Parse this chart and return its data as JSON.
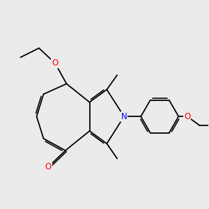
{
  "background_color": "#ebebeb",
  "bond_color": "#000000",
  "atom_colors": {
    "N": "#0000ff",
    "O": "#ff0000",
    "C": "#000000"
  },
  "figsize": [
    3.0,
    3.0
  ],
  "dpi": 100
}
